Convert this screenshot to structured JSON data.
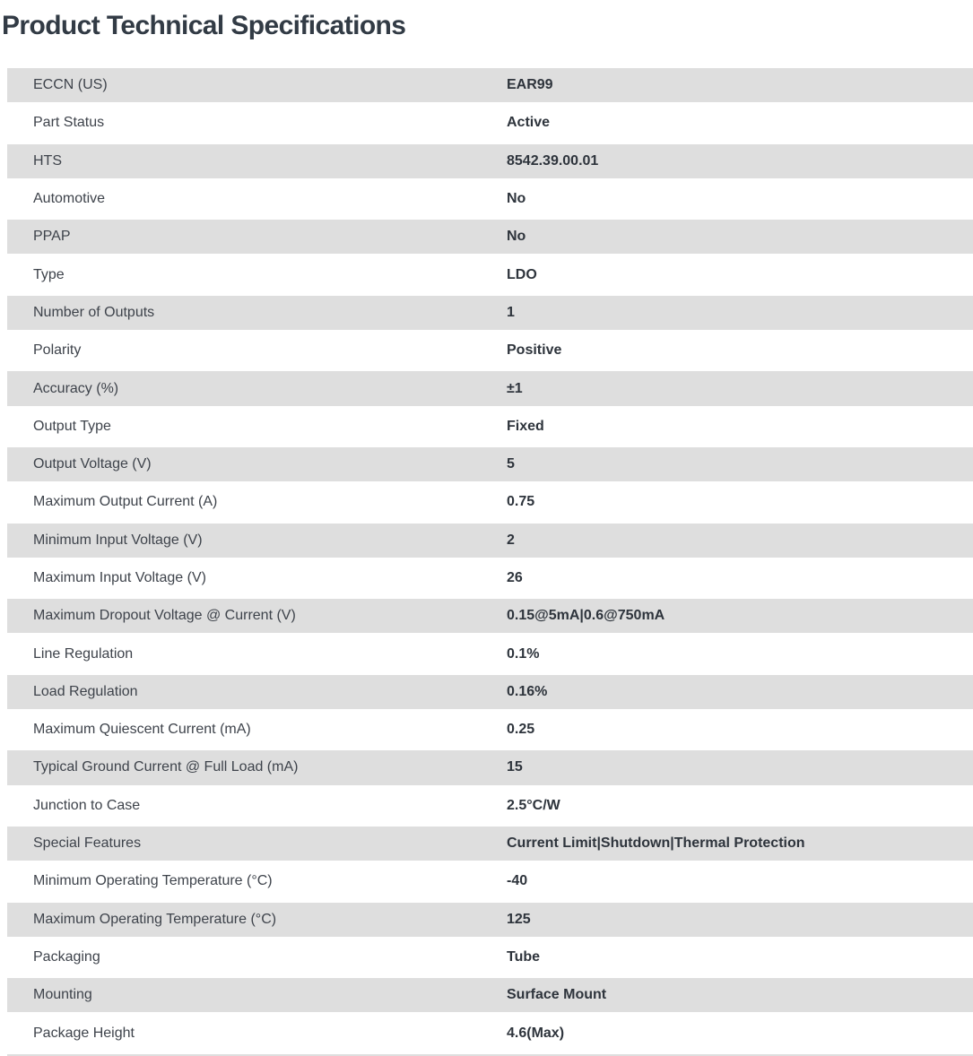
{
  "title": "Product Technical Specifications",
  "table": {
    "rows": [
      {
        "label": "ECCN (US)",
        "value": "EAR99"
      },
      {
        "label": "Part Status",
        "value": "Active"
      },
      {
        "label": "HTS",
        "value": "8542.39.00.01"
      },
      {
        "label": "Automotive",
        "value": "No"
      },
      {
        "label": "PPAP",
        "value": "No"
      },
      {
        "label": "Type",
        "value": "LDO"
      },
      {
        "label": "Number of Outputs",
        "value": "1"
      },
      {
        "label": "Polarity",
        "value": "Positive"
      },
      {
        "label": "Accuracy (%)",
        "value": "±1"
      },
      {
        "label": "Output Type",
        "value": "Fixed"
      },
      {
        "label": "Output Voltage (V)",
        "value": "5"
      },
      {
        "label": "Maximum Output Current (A)",
        "value": "0.75"
      },
      {
        "label": "Minimum Input Voltage (V)",
        "value": "2"
      },
      {
        "label": "Maximum Input Voltage (V)",
        "value": "26"
      },
      {
        "label": "Maximum Dropout Voltage @ Current (V)",
        "value": "0.15@5mA|0.6@750mA"
      },
      {
        "label": "Line Regulation",
        "value": "0.1%"
      },
      {
        "label": "Load Regulation",
        "value": "0.16%"
      },
      {
        "label": "Maximum Quiescent Current (mA)",
        "value": "0.25"
      },
      {
        "label": "Typical Ground Current @ Full Load (mA)",
        "value": "15"
      },
      {
        "label": "Junction to Case",
        "value": "2.5°C/W"
      },
      {
        "label": "Special Features",
        "value": "Current Limit|Shutdown|Thermal Protection"
      },
      {
        "label": "Minimum Operating Temperature (°C)",
        "value": "-40"
      },
      {
        "label": "Maximum Operating Temperature (°C)",
        "value": "125"
      },
      {
        "label": "Packaging",
        "value": "Tube"
      },
      {
        "label": "Mounting",
        "value": "Surface Mount"
      },
      {
        "label": "Package Height",
        "value": "4.6(Max)"
      }
    ]
  },
  "colors": {
    "shaded_row_bg": "#dedede",
    "title_text": "#323b45",
    "label_text": "#3e434b",
    "value_text": "#2e343c"
  }
}
